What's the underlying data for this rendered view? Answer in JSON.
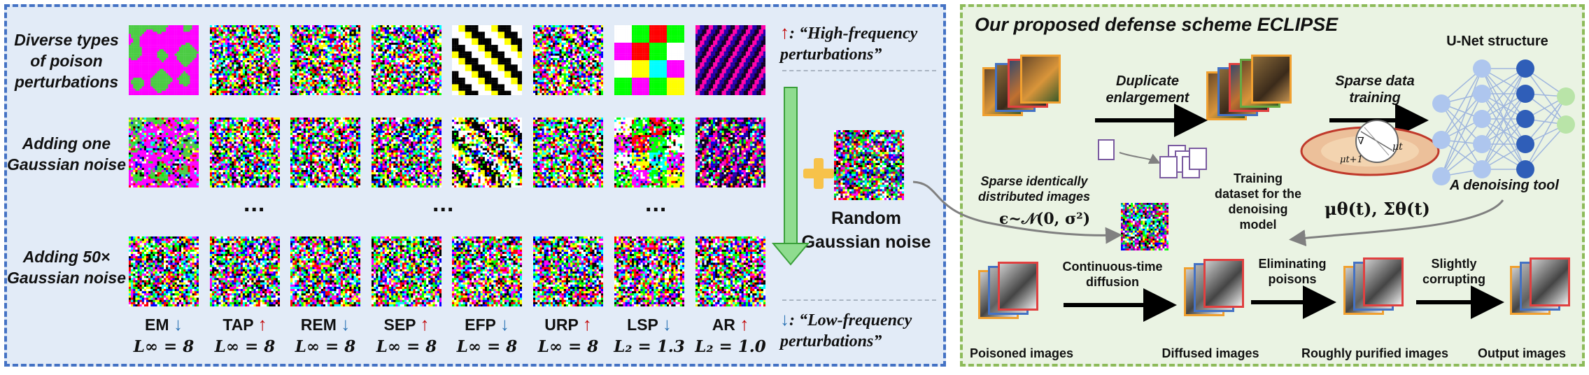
{
  "left_panel": {
    "row_labels": [
      "Diverse types\nof poison\nperturbations",
      "Adding one\nGaussian noise",
      "Adding 50×\nGaussian noise"
    ],
    "ellipsis": "...",
    "methods": [
      {
        "name": "EM",
        "arrow": "↓",
        "dir": "low",
        "norm": "L∞ = 8"
      },
      {
        "name": "TAP",
        "arrow": "↑",
        "dir": "high",
        "norm": "L∞ = 8"
      },
      {
        "name": "REM",
        "arrow": "↓",
        "dir": "low",
        "norm": "L∞ = 8"
      },
      {
        "name": "SEP",
        "arrow": "↑",
        "dir": "high",
        "norm": "L∞ = 8"
      },
      {
        "name": "EFP",
        "arrow": "↓",
        "dir": "low",
        "norm": "L∞ = 8"
      },
      {
        "name": "URP",
        "arrow": "↑",
        "dir": "high",
        "norm": "L∞ = 8"
      },
      {
        "name": "LSP",
        "arrow": "↓",
        "dir": "low",
        "norm": "L₂ = 1.3"
      },
      {
        "name": "AR",
        "arrow": "↑",
        "dir": "high",
        "norm": "L₂ = 1.0"
      }
    ],
    "legend_high": {
      "arrow": "↑",
      "text": ": “High-frequency\nperturbations”"
    },
    "legend_low": {
      "arrow": "↓",
      "text": ": “Low-frequency\nperturbations”"
    },
    "random_noise_label": "Random\nGaussian noise"
  },
  "right_panel": {
    "title": "Our proposed defense scheme ECLIPSE",
    "unet_label": "U-Net structure",
    "duplicate_label": "Duplicate\nenlargement",
    "sparse_training_label": "Sparse data\ntraining",
    "sparse_images_label": "Sparse identically\ndistributed images",
    "training_dataset_label": "Training\ndataset for the\ndenoising\nmodel",
    "denoising_tool_label": "A denoising tool",
    "mu_sigma": "μθ(t),   Σθ(t)",
    "epsilon": "ϵ~𝒩(0, σ²)",
    "continuous_label": "Continuous-time\ndiffusion",
    "eliminating_label": "Eliminating\npoisons",
    "corrupting_label": "Slightly\ncorrupting",
    "poisoned_label": "Poisoned images",
    "diffused_label": "Diffused images",
    "rough_label": "Roughly purified images",
    "output_label": "Output images",
    "ellipse_labels": [
      "∇",
      "μt",
      "μt+1"
    ]
  },
  "colors": {
    "left_bg": "#e2ebf7",
    "left_border": "#4472c4",
    "right_bg": "#eaf3e3",
    "right_border": "#8dbb5a",
    "high_arrow": "#c00000",
    "low_arrow": "#2e75b6",
    "plus": "#f5c542",
    "green_arrow": "#7fd27f",
    "unet_light": "#aec6ee",
    "unet_dark": "#2f5eb8",
    "unet_out": "#b9e4a8"
  }
}
